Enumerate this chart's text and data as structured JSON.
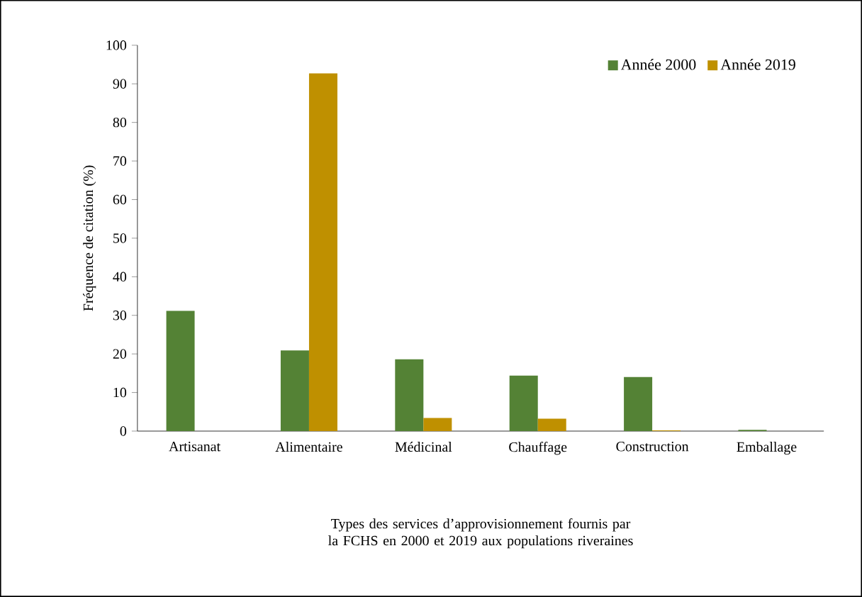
{
  "chart_data": {
    "type": "bar",
    "xlabel": "Types des services d’approvisionnement fournis par la FCHS en 2000 et 2019 aux populations riveraines",
    "ylabel": "Fréquence de citation (%)",
    "categories": [
      "Artisanat",
      "Alimentaire",
      "Médicinal",
      "Chauffage",
      "Construction",
      "Emballage"
    ],
    "series": [
      {
        "name": "Année 2000",
        "color": "#548235",
        "values": [
          31.2,
          20.9,
          18.6,
          14.4,
          14.0,
          0.3
        ]
      },
      {
        "name": "Année 2019",
        "color": "#bf9000",
        "values": [
          0,
          92.7,
          3.4,
          3.2,
          0.2,
          null
        ]
      }
    ],
    "ylim": [
      0,
      100
    ],
    "yticks": [
      0,
      10,
      20,
      30,
      40,
      50,
      60,
      70,
      80,
      90,
      100
    ],
    "legend": "top right",
    "grid": false
  }
}
